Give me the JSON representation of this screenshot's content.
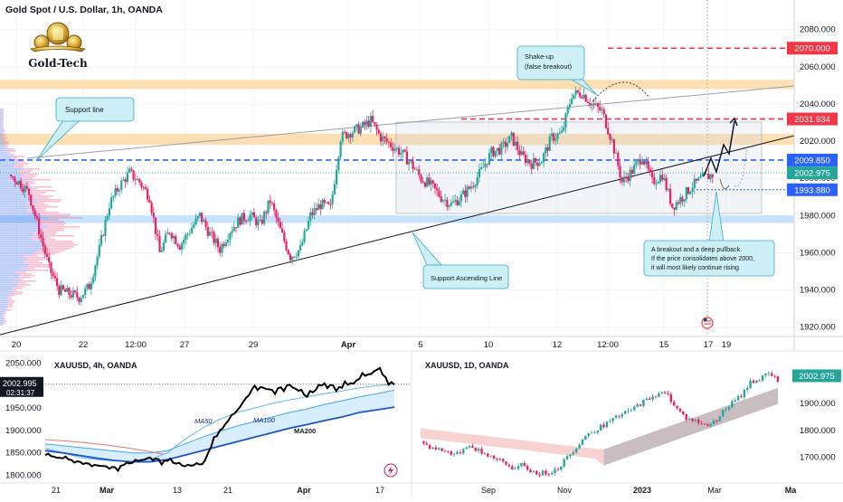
{
  "header": {
    "symbol": "Gold Spot / U.S. Dollar, 1h, OANDA",
    "brand": "Gold-Tech"
  },
  "colors": {
    "up": "#26a69a",
    "down": "#e91e63",
    "blue": "#2962ff",
    "red": "#f23645",
    "band_orange": "#fcd9a4",
    "band_blue": "#bbdefb"
  },
  "chart_data": [
    {
      "type": "line",
      "title": "Gold Spot / U.S. Dollar, 1h, OANDA",
      "ylim": [
        1915,
        2092
      ],
      "y_ticks": [
        "2080.000",
        "2060.000",
        "2040.000",
        "2020.000",
        "2000.000",
        "1980.000",
        "1960.000",
        "1940.000",
        "1920.000"
      ],
      "x_ticks": [
        "20",
        "22",
        "12:00",
        "27",
        "29",
        "Apr",
        "5",
        "10",
        "12",
        "12:00",
        "15",
        "17",
        "19"
      ],
      "close_series": [
        2002,
        1998,
        1992,
        1972,
        1952,
        1940,
        1938,
        1936,
        1942,
        1962,
        1986,
        1996,
        2003,
        1998,
        1990,
        1960,
        1972,
        1964,
        1972,
        1980,
        1970,
        1962,
        1972,
        1978,
        1980,
        1975,
        1988,
        1972,
        1958,
        1962,
        1980,
        1986,
        1984,
        2022,
        2025,
        2027,
        2031,
        2022,
        2018,
        2014,
        2008,
        2000,
        1996,
        1990,
        1986,
        1990,
        1996,
        2004,
        2014,
        2016,
        2022,
        2012,
        2008,
        2010,
        2022,
        2024,
        2045,
        2046,
        2040,
        2036,
        2020,
        1998,
        2004,
        2012,
        1998,
        2002,
        1985,
        1990,
        1996,
        2000,
        2002
      ],
      "levels": [
        {
          "label": "2070.000",
          "value": 2070,
          "color": "#f23645"
        },
        {
          "label": "2031.934",
          "value": 2031.934,
          "color": "#f23645"
        },
        {
          "label": "2009.850",
          "value": 2009.85,
          "color": "#2962ff"
        },
        {
          "label": "2002.975",
          "value": 2002.975,
          "color": "#26a69a"
        },
        {
          "label": "1993.880",
          "value": 1993.88,
          "color": "#2962ff"
        }
      ],
      "zones": [
        {
          "from": 2048,
          "to": 2053,
          "color": "#fcd9a4"
        },
        {
          "from": 2018,
          "to": 2024,
          "color": "#fcd9a4"
        },
        {
          "from": 1976,
          "to": 1980,
          "color": "#bbdefb"
        }
      ],
      "annotations": [
        {
          "label": "Support line"
        },
        {
          "label": "Shake-up (false breakout)"
        },
        {
          "label": "Support Ascending Line"
        },
        {
          "label": "A breakout and a deep pullback. If the price consolidates above 2000, it will most likely continue rising"
        }
      ]
    },
    {
      "type": "line",
      "title": "XAUUSD, 4h, OANDA",
      "ylim": [
        1795,
        2065
      ],
      "y_ticks": [
        "2050.000",
        "1950.000",
        "1900.000",
        "1850.000",
        "1800.000"
      ],
      "x_ticks": [
        "21",
        "Mar",
        "13",
        "21",
        "Apr",
        "17"
      ],
      "price_label": "2002.995",
      "countdown": "02:31:37",
      "series": [
        {
          "name": "MA50",
          "values": [
            1860,
            1850,
            1840,
            1835,
            1832,
            1830,
            1835,
            1850,
            1880,
            1905,
            1925,
            1940,
            1950,
            1960,
            1968,
            1975,
            1982,
            1988,
            1995,
            2000,
            2003
          ]
        },
        {
          "name": "MA100",
          "values": [
            1870,
            1866,
            1862,
            1858,
            1854,
            1850,
            1850,
            1855,
            1870,
            1885,
            1898,
            1910,
            1920,
            1930,
            1940,
            1948,
            1958,
            1966,
            1975,
            1982,
            1990
          ]
        },
        {
          "name": "MA200",
          "values": [
            1855,
            1850,
            1844,
            1838,
            1833,
            1830,
            1830,
            1835,
            1845,
            1855,
            1865,
            1875,
            1885,
            1895,
            1905,
            1913,
            1922,
            1930,
            1940,
            1946,
            1952
          ]
        },
        {
          "name": "",
          "values": [
            1845,
            1838,
            1830,
            1822,
            1818,
            1828,
            1840,
            1832,
            1820,
            1825,
            1900,
            1945,
            2000,
            1990,
            2002,
            1975,
            2005,
            1995,
            2015,
            2035,
            2002
          ]
        }
      ]
    },
    {
      "type": "line",
      "title": "XAUUSD, 1D, OANDA",
      "ylim": [
        1625,
        2075
      ],
      "y_ticks": [
        "1900.000",
        "1800.000",
        "1700.000"
      ],
      "x_ticks": [
        "Sep",
        "Nov",
        "2023",
        "Mar",
        "Ma"
      ],
      "price_label": "2002.975",
      "close_series": [
        1760,
        1740,
        1730,
        1720,
        1710,
        1745,
        1730,
        1715,
        1700,
        1680,
        1660,
        1670,
        1650,
        1640,
        1645,
        1660,
        1700,
        1740,
        1780,
        1800,
        1820,
        1840,
        1860,
        1875,
        1900,
        1920,
        1940,
        1930,
        1880,
        1845,
        1835,
        1820,
        1830,
        1870,
        1900,
        1930,
        1980,
        1990,
        2010,
        1985
      ]
    }
  ]
}
